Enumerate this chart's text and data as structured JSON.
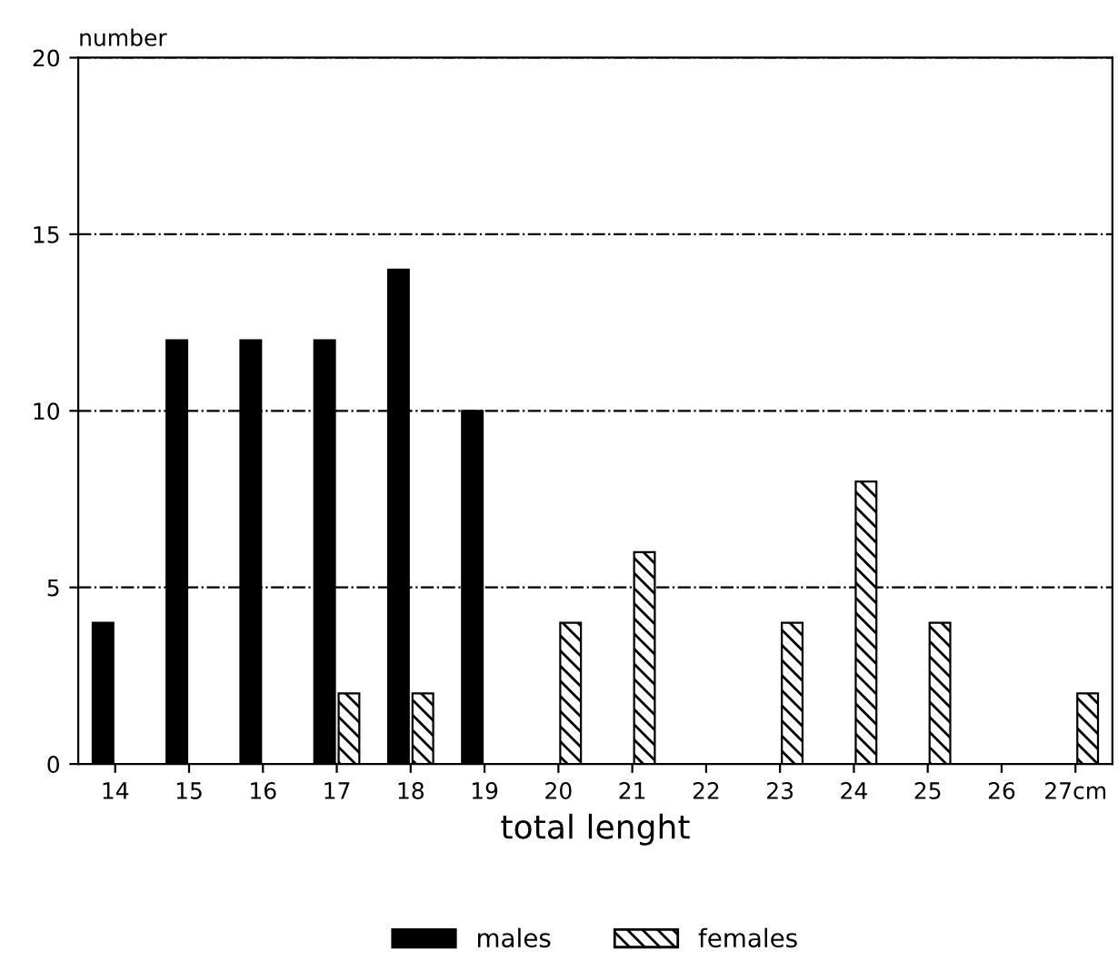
{
  "chart_data": {
    "type": "bar",
    "ylabel": "number",
    "xlabel": "total lenght",
    "categories": [
      "14",
      "15",
      "16",
      "17",
      "18",
      "19",
      "20",
      "21",
      "22",
      "23",
      "24",
      "25",
      "26",
      "27cm"
    ],
    "series": [
      {
        "name": "males",
        "color": "#000000",
        "values": [
          4,
          12,
          12,
          12,
          14,
          10,
          0,
          0,
          0,
          0,
          0,
          0,
          0,
          0
        ]
      },
      {
        "name": "females",
        "color": "#000000",
        "values": [
          0,
          0,
          0,
          2,
          2,
          0,
          4,
          6,
          0,
          4,
          8,
          4,
          0,
          2
        ]
      }
    ],
    "ylim": [
      0,
      20
    ],
    "yticks": [
      0,
      5,
      10,
      15,
      20
    ],
    "grid": "y",
    "legend": "bottom"
  }
}
